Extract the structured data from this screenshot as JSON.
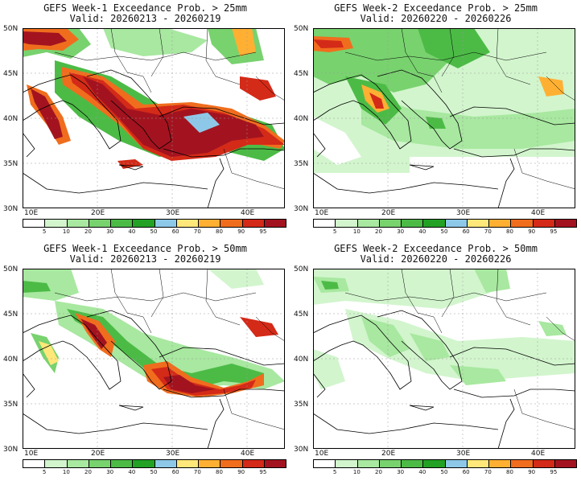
{
  "panels": [
    {
      "title": "GEFS Week-1 Exceedance Prob. > 25mm",
      "valid": "Valid: 20260213 - 20260219",
      "week": 1,
      "threshold_mm": 25
    },
    {
      "title": "GEFS Week-2 Exceedance Prob. > 25mm",
      "valid": "Valid: 20260220 - 20260226",
      "week": 2,
      "threshold_mm": 25
    },
    {
      "title": "GEFS Week-1 Exceedance Prob. > 50mm",
      "valid": "Valid: 20260213 - 20260219",
      "week": 1,
      "threshold_mm": 50
    },
    {
      "title": "GEFS Week-2 Exceedance Prob. > 50mm",
      "valid": "Valid: 20260220 - 20260226",
      "week": 2,
      "threshold_mm": 50
    }
  ],
  "axes": {
    "lat_labels": [
      "50N",
      "45N",
      "40N",
      "35N",
      "30N"
    ],
    "lon_labels": [
      "10E",
      "20E",
      "30E",
      "40E"
    ],
    "lat_range": [
      30,
      50
    ],
    "lon_range": [
      10,
      45
    ]
  },
  "colorbar": {
    "labels": [
      "5",
      "10",
      "20",
      "30",
      "40",
      "50",
      "60",
      "70",
      "80",
      "90",
      "95"
    ],
    "colors": [
      "#ffffff",
      "#d2f5cd",
      "#a8e8a0",
      "#78d26e",
      "#4cbb46",
      "#22a125",
      "#8ec8e8",
      "#ffe77a",
      "#ffb033",
      "#f06d1e",
      "#d42a18",
      "#a3131f"
    ]
  }
}
